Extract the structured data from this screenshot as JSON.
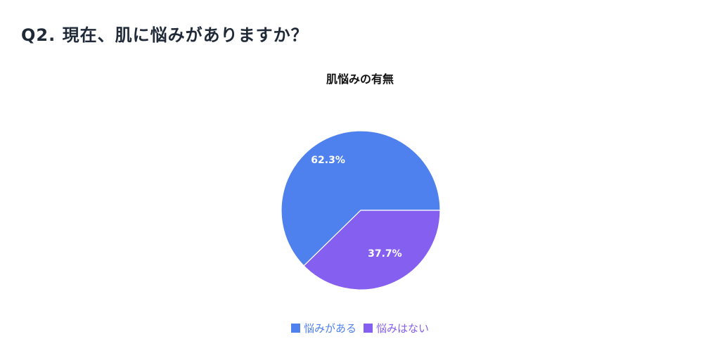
{
  "page": {
    "question_title": "Q2. 現在、肌に悩みがありますか？"
  },
  "chart_data": {
    "type": "pie",
    "title": "肌悩みの有無",
    "categories": [
      "悩みがある",
      "悩みはない"
    ],
    "values": [
      62.3,
      37.7
    ],
    "value_labels": [
      "62.3%",
      "37.7%"
    ],
    "colors": [
      "#4F81EE",
      "#8560F0"
    ],
    "label_color": "#ffffff",
    "legend_position": "bottom"
  }
}
